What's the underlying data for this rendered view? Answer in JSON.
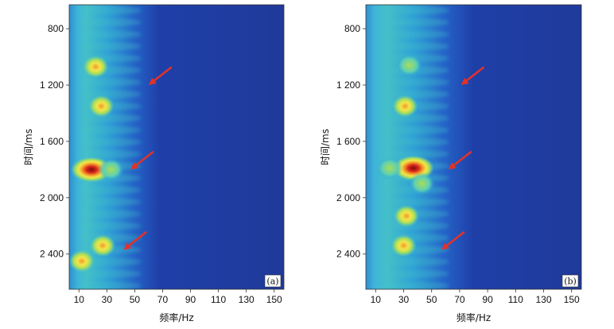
{
  "chart_data": [
    {
      "type": "heatmap",
      "panel_label": "(a)",
      "xlabel": "频率/Hz",
      "ylabel": "时间/ms",
      "x_ticks": [
        10,
        30,
        50,
        70,
        90,
        110,
        130,
        150
      ],
      "y_ticks": [
        800,
        1200,
        1600,
        2000,
        2400
      ],
      "y_tick_labels": [
        "800",
        "1 200",
        "1 600",
        "2 000",
        "2 400"
      ],
      "xlim": [
        3,
        157
      ],
      "ylim": [
        630,
        2650
      ],
      "y_inverted": true,
      "colormap": [
        "#1a2a8c",
        "#1f4fc4",
        "#2ea6d8",
        "#5fd0b0",
        "#a8dd5a",
        "#f2e64a",
        "#f39a2a",
        "#d8261c",
        "#7a0d0d"
      ],
      "hotspots": [
        {
          "freq": 19,
          "time": 1800,
          "intensity": 1.0
        },
        {
          "freq": 26,
          "time": 1350,
          "intensity": 0.85
        },
        {
          "freq": 22,
          "time": 1070,
          "intensity": 0.8
        },
        {
          "freq": 27,
          "time": 2340,
          "intensity": 0.85
        },
        {
          "freq": 12,
          "time": 2450,
          "intensity": 0.85
        },
        {
          "freq": 33,
          "time": 1800,
          "intensity": 0.75
        }
      ],
      "arrows": [
        {
          "freq": 60,
          "time": 1200
        },
        {
          "freq": 47,
          "time": 1800
        },
        {
          "freq": 42,
          "time": 2370
        }
      ]
    },
    {
      "type": "heatmap",
      "panel_label": "(b)",
      "xlabel": "频率/Hz",
      "ylabel": "时间/ms",
      "x_ticks": [
        10,
        30,
        50,
        70,
        90,
        110,
        130,
        150
      ],
      "y_ticks": [
        800,
        1200,
        1600,
        2000,
        2400
      ],
      "y_tick_labels": [
        "800",
        "1 200",
        "1 600",
        "2 000",
        "2 400"
      ],
      "xlim": [
        3,
        157
      ],
      "ylim": [
        630,
        2650
      ],
      "y_inverted": true,
      "colormap": [
        "#1a2a8c",
        "#1f4fc4",
        "#2ea6d8",
        "#5fd0b0",
        "#a8dd5a",
        "#f2e64a",
        "#f39a2a",
        "#d8261c",
        "#7a0d0d"
      ],
      "hotspots": [
        {
          "freq": 37,
          "time": 1790,
          "intensity": 1.0
        },
        {
          "freq": 31,
          "time": 1350,
          "intensity": 0.85
        },
        {
          "freq": 34,
          "time": 1060,
          "intensity": 0.75
        },
        {
          "freq": 32,
          "time": 2130,
          "intensity": 0.85
        },
        {
          "freq": 30,
          "time": 2340,
          "intensity": 0.85
        },
        {
          "freq": 43,
          "time": 1900,
          "intensity": 0.75
        },
        {
          "freq": 20,
          "time": 1790,
          "intensity": 0.75
        }
      ],
      "arrows": [
        {
          "freq": 71,
          "time": 1200
        },
        {
          "freq": 62,
          "time": 1800
        },
        {
          "freq": 57,
          "time": 2370
        }
      ]
    }
  ]
}
